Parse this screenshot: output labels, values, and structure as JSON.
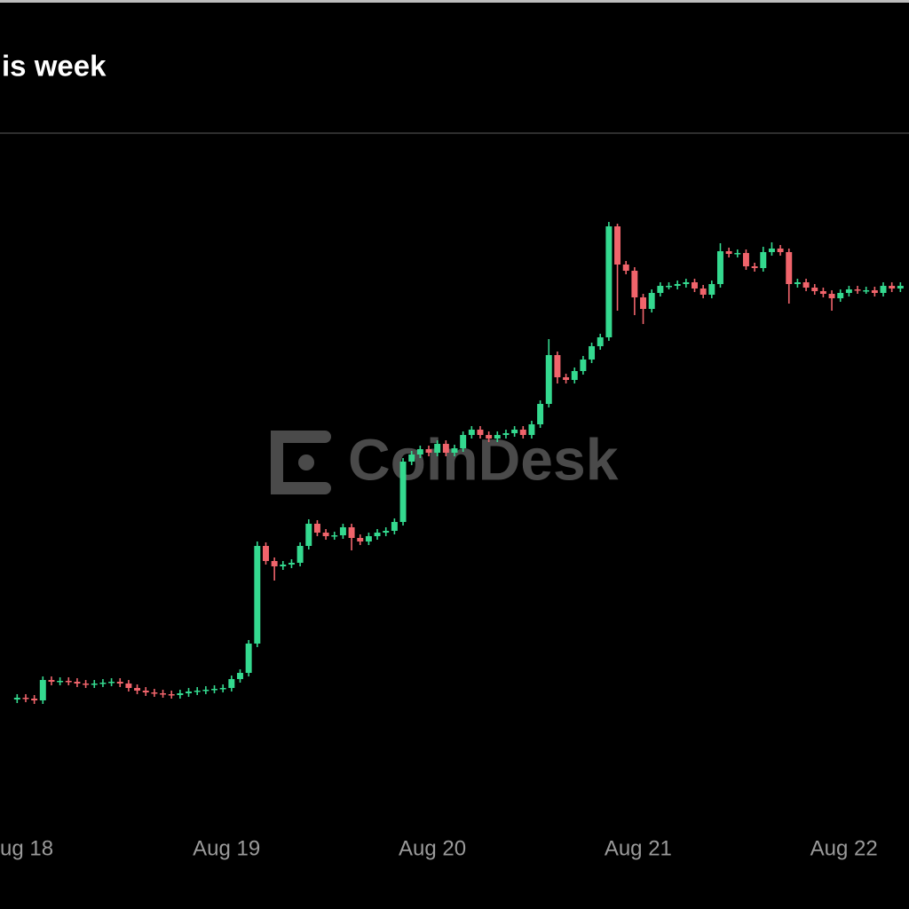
{
  "chart_data": {
    "type": "candlestick",
    "title": "is week",
    "watermark": "CoinDesk",
    "up_color": "#34d98f",
    "down_color": "#f0646b",
    "xlim": [
      -2,
      104
    ],
    "ylim": [
      0,
      780
    ],
    "xticks": [
      {
        "value": 0,
        "label": "ug 18"
      },
      {
        "value": 24,
        "label": "Aug 19"
      },
      {
        "value": 48,
        "label": "Aug 20"
      },
      {
        "value": 72,
        "label": "Aug 21"
      },
      {
        "value": 96,
        "label": "Aug 22"
      }
    ],
    "x": [
      0,
      1,
      2,
      3,
      4,
      5,
      6,
      7,
      8,
      9,
      10,
      11,
      12,
      13,
      14,
      15,
      16,
      17,
      18,
      19,
      20,
      21,
      22,
      23,
      24,
      25,
      26,
      27,
      28,
      29,
      30,
      31,
      32,
      33,
      34,
      35,
      36,
      37,
      38,
      39,
      40,
      41,
      42,
      43,
      44,
      45,
      46,
      47,
      48,
      49,
      50,
      51,
      52,
      53,
      54,
      55,
      56,
      57,
      58,
      59,
      60,
      61,
      62,
      63,
      64,
      65,
      66,
      67,
      68,
      69,
      70,
      71,
      72,
      73,
      74,
      75,
      76,
      77,
      78,
      79,
      80,
      81,
      82,
      83,
      84,
      85,
      86,
      87,
      88,
      89,
      90,
      91,
      92,
      93,
      94,
      95,
      96,
      97,
      98,
      99,
      100,
      101,
      102,
      103
    ],
    "open": [
      142,
      144,
      143,
      141,
      164,
      162,
      163,
      162,
      160,
      159,
      160,
      161,
      162,
      160,
      155,
      152,
      150,
      149,
      148,
      147,
      149,
      151,
      152,
      153,
      154,
      155,
      165,
      172,
      205,
      315,
      298,
      292,
      294,
      296,
      315,
      340,
      330,
      326,
      327,
      336,
      324,
      320,
      326,
      330,
      332,
      342,
      410,
      418,
      424,
      420,
      430,
      420,
      425,
      440,
      446,
      440,
      436,
      440,
      442,
      446,
      440,
      452,
      475,
      530,
      505,
      502,
      512,
      525,
      540,
      550,
      675,
      632,
      625,
      595,
      582,
      600,
      608,
      608,
      610,
      612,
      605,
      598,
      610,
      647,
      644,
      645,
      630,
      628,
      646,
      650,
      646,
      610,
      612,
      606,
      602,
      599,
      594,
      600,
      604,
      603,
      603,
      600,
      608,
      605
    ],
    "high": [
      148,
      148,
      147,
      168,
      168,
      167,
      167,
      166,
      164,
      164,
      165,
      166,
      166,
      164,
      159,
      156,
      154,
      153,
      152,
      153,
      155,
      156,
      157,
      158,
      159,
      169,
      176,
      209,
      320,
      319,
      302,
      298,
      300,
      319,
      345,
      344,
      334,
      331,
      340,
      340,
      328,
      330,
      334,
      336,
      346,
      414,
      422,
      428,
      428,
      434,
      434,
      429,
      444,
      450,
      450,
      444,
      444,
      446,
      450,
      450,
      456,
      479,
      548,
      534,
      509,
      516,
      529,
      544,
      554,
      680,
      678,
      636,
      629,
      599,
      604,
      612,
      612,
      614,
      616,
      616,
      609,
      614,
      656,
      651,
      649,
      649,
      634,
      652,
      657,
      654,
      650,
      616,
      616,
      610,
      606,
      603,
      604,
      608,
      608,
      607,
      607,
      612,
      612,
      612
    ],
    "low": [
      138,
      139,
      137,
      137,
      158,
      158,
      158,
      156,
      155,
      155,
      156,
      157,
      156,
      151,
      148,
      146,
      145,
      144,
      143,
      143,
      145,
      147,
      148,
      149,
      150,
      151,
      161,
      168,
      201,
      294,
      276,
      288,
      290,
      292,
      311,
      326,
      322,
      322,
      323,
      310,
      316,
      316,
      322,
      326,
      328,
      338,
      406,
      414,
      416,
      416,
      416,
      416,
      421,
      436,
      436,
      432,
      432,
      436,
      438,
      436,
      436,
      448,
      471,
      498,
      498,
      498,
      508,
      521,
      536,
      546,
      580,
      621,
      575,
      565,
      578,
      596,
      604,
      604,
      606,
      601,
      594,
      594,
      606,
      640,
      640,
      626,
      624,
      624,
      642,
      642,
      588,
      606,
      602,
      598,
      595,
      580,
      590,
      596,
      599,
      599,
      596,
      596,
      601,
      601
    ],
    "close": [
      144,
      143,
      141,
      164,
      162,
      163,
      162,
      160,
      159,
      160,
      161,
      162,
      160,
      155,
      152,
      150,
      149,
      148,
      147,
      149,
      151,
      152,
      153,
      154,
      155,
      165,
      172,
      205,
      315,
      298,
      292,
      294,
      296,
      315,
      340,
      330,
      326,
      327,
      336,
      324,
      320,
      326,
      330,
      332,
      342,
      410,
      418,
      424,
      420,
      430,
      420,
      425,
      440,
      446,
      440,
      436,
      440,
      442,
      446,
      440,
      452,
      475,
      530,
      505,
      502,
      512,
      525,
      540,
      550,
      675,
      632,
      625,
      595,
      582,
      600,
      608,
      608,
      610,
      612,
      605,
      598,
      610,
      647,
      644,
      645,
      630,
      628,
      646,
      650,
      646,
      610,
      612,
      606,
      602,
      599,
      594,
      600,
      604,
      603,
      603,
      600,
      608,
      605,
      608
    ]
  }
}
